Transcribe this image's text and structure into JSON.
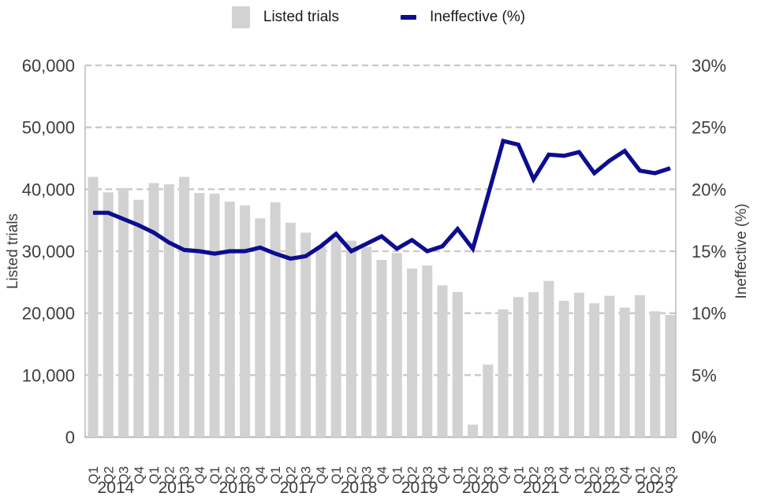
{
  "legend": {
    "bars_label": "Listed trials",
    "line_label": "Ineffective (%)"
  },
  "colors": {
    "bar": "#d2d2d2",
    "line": "#0d0d8f",
    "grid": "#c9c9c9",
    "axis_line": "#bfbfbf",
    "tick_text": "#3d3d3d",
    "legend_text": "#1a1a1a",
    "background": "#ffffff"
  },
  "chart_data": {
    "type": "combo",
    "legend_position": "top",
    "grid": "horizontal-dashed",
    "categories": [
      "2014 Q1",
      "2014 Q2",
      "2014 Q3",
      "2014 Q4",
      "2015 Q1",
      "2015 Q2",
      "2015 Q3",
      "2015 Q4",
      "2016 Q1",
      "2016 Q2",
      "2016 Q3",
      "2016 Q4",
      "2017 Q1",
      "2017 Q2",
      "2017 Q3",
      "2017 Q4",
      "2018 Q1",
      "2018 Q2",
      "2018 Q3",
      "2018 Q4",
      "2019 Q1",
      "2019 Q2",
      "2019 Q3",
      "2019 Q4",
      "2020 Q1",
      "2020 Q2",
      "2020 Q3",
      "2020 Q4",
      "2021 Q1",
      "2021 Q2",
      "2021 Q3",
      "2021 Q4",
      "2022 Q1",
      "2022 Q2",
      "2022 Q3",
      "2022 Q4",
      "2023 Q1",
      "2023 Q2",
      "2023 Q3"
    ],
    "x_quarter_labels": [
      "Q1",
      "Q2",
      "Q3",
      "Q4",
      "Q1",
      "Q2",
      "Q3",
      "Q4",
      "Q1",
      "Q2",
      "Q3",
      "Q4",
      "Q1",
      "Q2",
      "Q3",
      "Q4",
      "Q1",
      "Q2",
      "Q3",
      "Q4",
      "Q1",
      "Q2",
      "Q3",
      "Q4",
      "Q1",
      "Q2",
      "Q3",
      "Q4",
      "Q1",
      "Q2",
      "Q3",
      "Q4",
      "Q1",
      "Q2",
      "Q3",
      "Q4",
      "Q1",
      "Q2",
      "Q3"
    ],
    "x_year_groups": [
      {
        "label": "2014",
        "quarters": 4
      },
      {
        "label": "2015",
        "quarters": 4
      },
      {
        "label": "2016",
        "quarters": 4
      },
      {
        "label": "2017",
        "quarters": 4
      },
      {
        "label": "2018",
        "quarters": 4
      },
      {
        "label": "2019",
        "quarters": 4
      },
      {
        "label": "2020",
        "quarters": 4
      },
      {
        "label": "2021",
        "quarters": 4
      },
      {
        "label": "2022",
        "quarters": 4
      },
      {
        "label": "2023",
        "quarters": 3
      }
    ],
    "series": [
      {
        "name": "Listed trials",
        "type": "bar",
        "axis": "left",
        "values": [
          42000,
          39500,
          40200,
          38300,
          41000,
          40800,
          42000,
          39400,
          39300,
          38000,
          37400,
          35300,
          37900,
          34600,
          33000,
          30800,
          31900,
          31700,
          30700,
          28600,
          29700,
          27200,
          27700,
          24500,
          23400,
          2000,
          11700,
          20600,
          22600,
          23400,
          25200,
          22000,
          23300,
          21600,
          22800,
          20900,
          22900,
          20300,
          19700
        ]
      },
      {
        "name": "Ineffective (%)",
        "type": "line",
        "axis": "right",
        "values": [
          18.1,
          18.1,
          17.6,
          17.1,
          16.5,
          15.7,
          15.1,
          15.0,
          14.8,
          15.0,
          15.0,
          15.3,
          14.8,
          14.4,
          14.6,
          15.4,
          16.4,
          15.0,
          15.6,
          16.2,
          15.2,
          15.9,
          15.0,
          15.4,
          16.8,
          15.2,
          19.5,
          23.9,
          23.6,
          20.8,
          22.8,
          22.7,
          23.0,
          21.3,
          22.3,
          23.1,
          21.5,
          21.3,
          21.7
        ]
      }
    ],
    "left_axis": {
      "label": "Listed trials",
      "min": 0,
      "max": 60000,
      "tick_step": 10000,
      "ticks": [
        "0",
        "10,000",
        "20,000",
        "30,000",
        "40,000",
        "50,000",
        "60,000"
      ]
    },
    "right_axis": {
      "label": "Ineffective (%)",
      "min": 0,
      "max": 30,
      "tick_step": 5,
      "unit": "%",
      "ticks": [
        "0%",
        "5%",
        "10%",
        "15%",
        "20%",
        "25%",
        "30%"
      ]
    }
  }
}
